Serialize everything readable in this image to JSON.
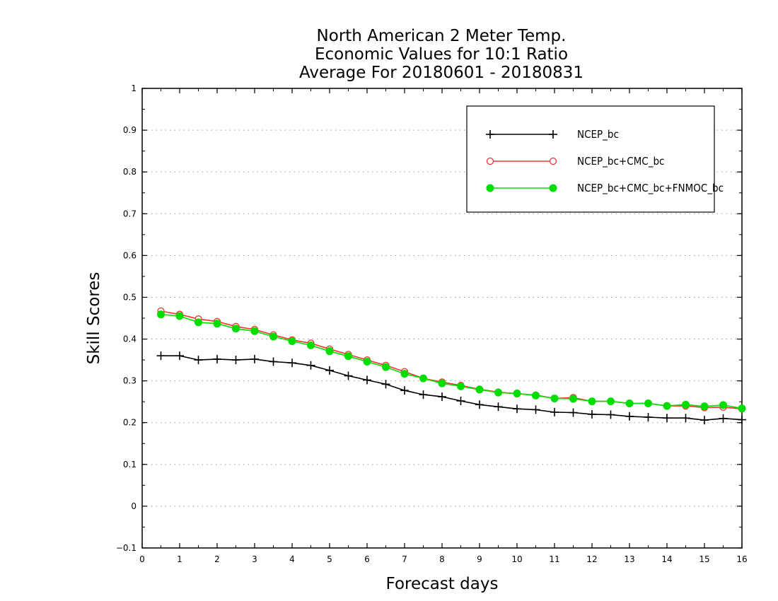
{
  "chart_data": {
    "type": "line",
    "title": [
      "North American 2 Meter Temp.",
      "Economic Values for 10:1 Ratio",
      "Average For 20180601 - 20180831"
    ],
    "xlabel": "Forecast days",
    "ylabel": "Skill Scores",
    "xlim": [
      0,
      16
    ],
    "ylim": [
      -0.1,
      1
    ],
    "xticks": [
      "0",
      "1",
      "2",
      "3",
      "4",
      "5",
      "6",
      "7",
      "8",
      "9",
      "10",
      "11",
      "12",
      "13",
      "14",
      "15",
      "16"
    ],
    "yticks": [
      "−0.1",
      "0",
      "0.1",
      "0.2",
      "0.3",
      "0.4",
      "0.5",
      "0.6",
      "0.7",
      "0.8",
      "0.9",
      "1"
    ],
    "grid": "horizontal-dotted",
    "legend_position": "top-right",
    "x": [
      0.5,
      1,
      1.5,
      2,
      2.5,
      3,
      3.5,
      4,
      4.5,
      5,
      5.5,
      6,
      6.5,
      7,
      7.5,
      8,
      8.5,
      9,
      9.5,
      10,
      10.5,
      11,
      11.5,
      12,
      12.5,
      13,
      13.5,
      14,
      14.5,
      15,
      15.5,
      16
    ],
    "series": [
      {
        "name": "NCEP_bc",
        "color": "#000000",
        "marker": "plus",
        "values": [
          0.36,
          0.36,
          0.35,
          0.352,
          0.35,
          0.352,
          0.346,
          0.343,
          0.337,
          0.325,
          0.312,
          0.302,
          0.292,
          0.277,
          0.267,
          0.262,
          0.252,
          0.243,
          0.238,
          0.233,
          0.231,
          0.225,
          0.224,
          0.22,
          0.219,
          0.215,
          0.213,
          0.211,
          0.211,
          0.206,
          0.21,
          0.207
        ]
      },
      {
        "name": "NCEP_bc+CMC_bc",
        "color": "#ee3333",
        "marker": "open-circle",
        "values": [
          0.467,
          0.459,
          0.448,
          0.442,
          0.43,
          0.423,
          0.41,
          0.398,
          0.39,
          0.376,
          0.363,
          0.35,
          0.337,
          0.322,
          0.306,
          0.297,
          0.289,
          0.28,
          0.273,
          0.269,
          0.266,
          0.258,
          0.26,
          0.251,
          0.251,
          0.246,
          0.246,
          0.24,
          0.24,
          0.236,
          0.237,
          0.233
        ]
      },
      {
        "name": "NCEP_bc+CMC_bc+FNMOC_bc",
        "color": "#00dd00",
        "marker": "filled-circle",
        "values": [
          0.459,
          0.455,
          0.44,
          0.437,
          0.425,
          0.419,
          0.406,
          0.395,
          0.385,
          0.371,
          0.359,
          0.346,
          0.333,
          0.317,
          0.306,
          0.294,
          0.287,
          0.279,
          0.272,
          0.27,
          0.265,
          0.258,
          0.257,
          0.251,
          0.251,
          0.246,
          0.246,
          0.24,
          0.243,
          0.239,
          0.242,
          0.234
        ]
      }
    ]
  }
}
